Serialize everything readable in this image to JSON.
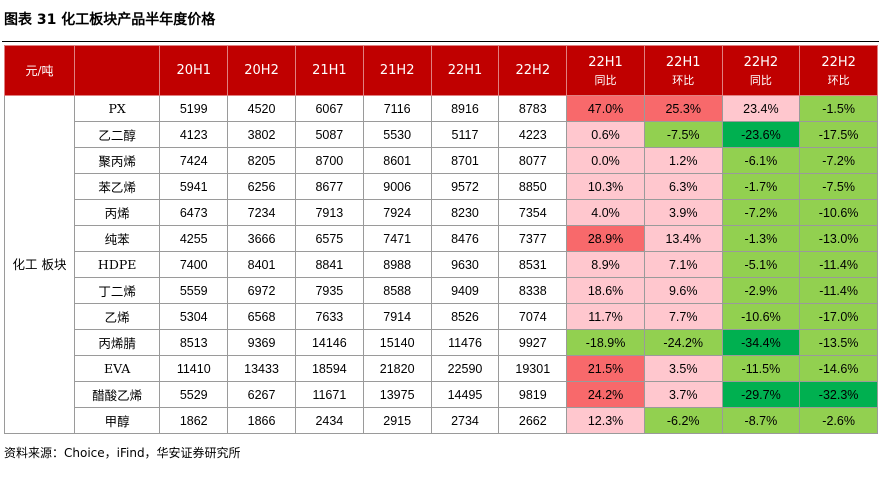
{
  "title": "图表 31  化工板块产品半年度价格",
  "unit_label": "元/吨",
  "category": "化工\n板块",
  "columns": [
    {
      "top": "20H1",
      "sub": ""
    },
    {
      "top": "20H2",
      "sub": ""
    },
    {
      "top": "21H1",
      "sub": ""
    },
    {
      "top": "21H2",
      "sub": ""
    },
    {
      "top": "22H1",
      "sub": ""
    },
    {
      "top": "22H2",
      "sub": ""
    },
    {
      "top": "22H1",
      "sub": "同比"
    },
    {
      "top": "22H1",
      "sub": "环比"
    },
    {
      "top": "22H2",
      "sub": "同比"
    },
    {
      "top": "22H2",
      "sub": "环比"
    }
  ],
  "rows": [
    {
      "name": "PX",
      "values": [
        "5199",
        "4520",
        "6067",
        "7116",
        "8916",
        "8783"
      ],
      "changes": [
        "47.0%",
        "25.3%",
        "23.4%",
        "-1.5%"
      ]
    },
    {
      "name": "乙二醇",
      "values": [
        "4123",
        "3802",
        "5087",
        "5530",
        "5117",
        "4223"
      ],
      "changes": [
        "0.6%",
        "-7.5%",
        "-23.6%",
        "-17.5%"
      ]
    },
    {
      "name": "聚丙烯",
      "values": [
        "7424",
        "8205",
        "8700",
        "8601",
        "8701",
        "8077"
      ],
      "changes": [
        "0.0%",
        "1.2%",
        "-6.1%",
        "-7.2%"
      ]
    },
    {
      "name": "苯乙烯",
      "values": [
        "5941",
        "6256",
        "8677",
        "9006",
        "9572",
        "8850"
      ],
      "changes": [
        "10.3%",
        "6.3%",
        "-1.7%",
        "-7.5%"
      ]
    },
    {
      "name": "丙烯",
      "values": [
        "6473",
        "7234",
        "7913",
        "7924",
        "8230",
        "7354"
      ],
      "changes": [
        "4.0%",
        "3.9%",
        "-7.2%",
        "-10.6%"
      ]
    },
    {
      "name": "纯苯",
      "values": [
        "4255",
        "3666",
        "6575",
        "7471",
        "8476",
        "7377"
      ],
      "changes": [
        "28.9%",
        "13.4%",
        "-1.3%",
        "-13.0%"
      ]
    },
    {
      "name": "HDPE",
      "values": [
        "7400",
        "8401",
        "8841",
        "8988",
        "9630",
        "8531"
      ],
      "changes": [
        "8.9%",
        "7.1%",
        "-5.1%",
        "-11.4%"
      ]
    },
    {
      "name": "丁二烯",
      "values": [
        "5559",
        "6972",
        "7935",
        "8588",
        "9409",
        "8338"
      ],
      "changes": [
        "18.6%",
        "9.6%",
        "-2.9%",
        "-11.4%"
      ]
    },
    {
      "name": "乙烯",
      "values": [
        "5304",
        "6568",
        "7633",
        "7914",
        "8526",
        "7074"
      ],
      "changes": [
        "11.7%",
        "7.7%",
        "-10.6%",
        "-17.0%"
      ]
    },
    {
      "name": "丙烯腈",
      "values": [
        "8513",
        "9369",
        "14146",
        "15140",
        "11476",
        "9927"
      ],
      "changes": [
        "-18.9%",
        "-24.2%",
        "-34.4%",
        "-13.5%"
      ]
    },
    {
      "name": "EVA",
      "values": [
        "11410",
        "13433",
        "18594",
        "21820",
        "22590",
        "19301"
      ],
      "changes": [
        "21.5%",
        "3.5%",
        "-11.5%",
        "-14.6%"
      ]
    },
    {
      "name": "醋酸乙烯",
      "values": [
        "5529",
        "6267",
        "11671",
        "13975",
        "14495",
        "9819"
      ],
      "changes": [
        "24.2%",
        "3.7%",
        "-29.7%",
        "-32.3%"
      ]
    },
    {
      "name": "甲醇",
      "values": [
        "1862",
        "1866",
        "2434",
        "2915",
        "2734",
        "2662"
      ],
      "changes": [
        "12.3%",
        "-6.2%",
        "-8.7%",
        "-2.6%"
      ]
    }
  ],
  "colors": {
    "header_bg": "#c00000",
    "positive_light": "#ffc7ce",
    "positive_strong": "#f8696b",
    "negative_light": "#92d050",
    "negative_strong": "#00b050"
  },
  "source": "资料来源：Choice，iFind，华安证券研究所"
}
